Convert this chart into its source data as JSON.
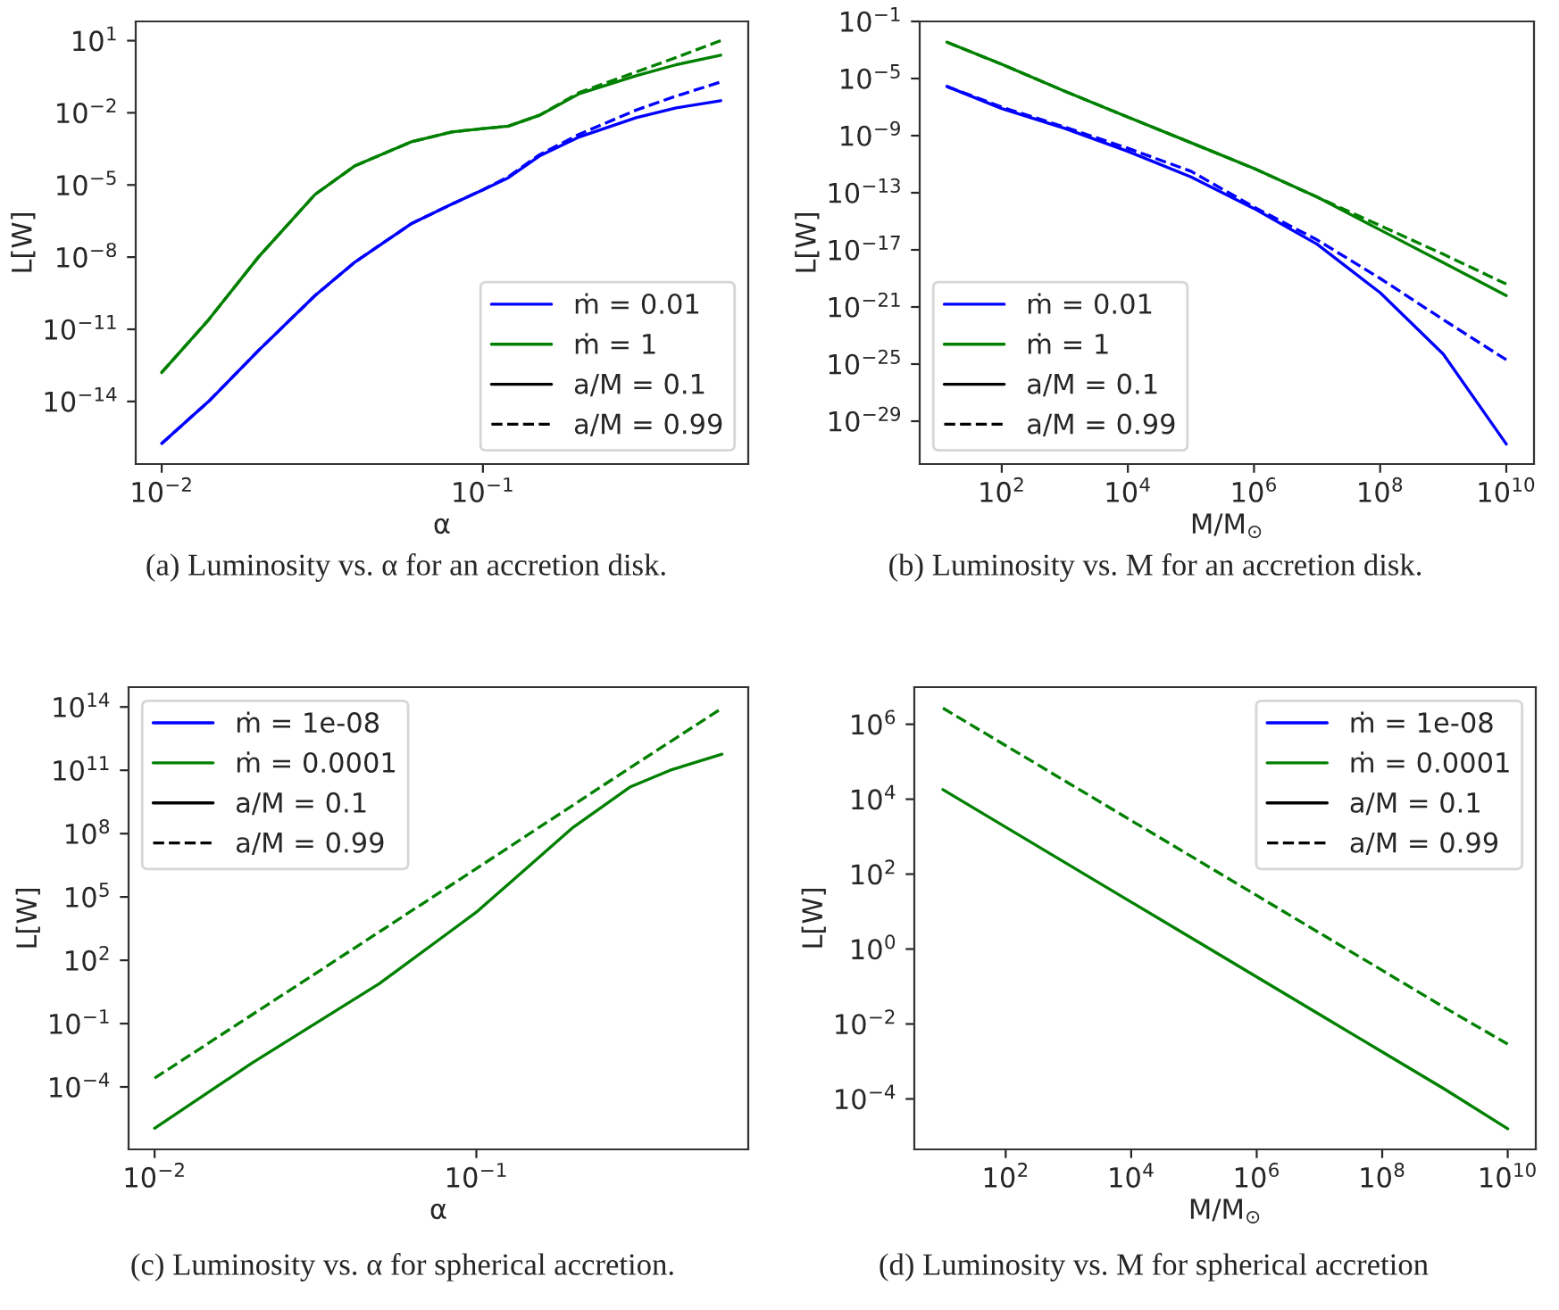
{
  "chart_data": [
    {
      "type": "line",
      "xlabel": "α",
      "ylabel": "L[W]",
      "log": "xy",
      "legend": "bottom right",
      "xlim": [
        0.0083,
        0.67
      ],
      "ylim": [
        2.5e-17,
        63
      ],
      "xticks": [
        {
          "value": 0.01,
          "label": "10$^{−2}$"
        },
        {
          "value": 0.1,
          "label": "10$^{−1}$"
        }
      ],
      "yticks": [
        {
          "value": 1e-14,
          "label": "10$^{−14}$"
        },
        {
          "value": 1e-11,
          "label": "10$^{−11}$"
        },
        {
          "value": 1e-08,
          "label": "10$^{−8}$"
        },
        {
          "value": 1e-05,
          "label": "10$^{−5}$"
        },
        {
          "value": 0.01,
          "label": "10$^{−2}$"
        },
        {
          "value": 10,
          "label": "10$^{1}$"
        }
      ],
      "series": [
        {
          "name": "ṁ = 0.01",
          "color": "#0000ff",
          "line_style": "solid",
          "x": [
            0.01,
            0.014,
            0.02,
            0.03,
            0.04,
            0.06,
            0.08,
            0.1,
            0.12,
            0.15,
            0.2,
            0.3,
            0.4,
            0.55
          ],
          "values": [
            1.8e-16,
            1e-14,
            1.3e-12,
            2.5e-10,
            6.3e-09,
            2.5e-07,
            1.6e-06,
            6.3e-06,
            2e-05,
            0.00016,
            0.001,
            0.0063,
            0.016,
            0.032
          ]
        },
        {
          "color": "#0000ff",
          "line_style": "dashed",
          "x": [
            0.01,
            0.014,
            0.02,
            0.03,
            0.04,
            0.06,
            0.08,
            0.1,
            0.12,
            0.15,
            0.2,
            0.3,
            0.4,
            0.55
          ],
          "values": [
            1.8e-16,
            1e-14,
            1.3e-12,
            2.5e-10,
            6.3e-09,
            2.5e-07,
            1.6e-06,
            6.3e-06,
            2.2e-05,
            0.00018,
            0.0013,
            0.013,
            0.05,
            0.19
          ]
        },
        {
          "name": "ṁ = 1",
          "color": "#008000",
          "line_style": "solid",
          "x": [
            0.01,
            0.014,
            0.02,
            0.03,
            0.04,
            0.06,
            0.08,
            0.1,
            0.12,
            0.15,
            0.2,
            0.3,
            0.4,
            0.55
          ],
          "values": [
            1.6e-13,
            2.5e-11,
            1e-08,
            4e-06,
            6.3e-05,
            0.00063,
            0.0016,
            0.0022,
            0.0028,
            0.0079,
            0.063,
            0.35,
            1,
            2.5
          ]
        },
        {
          "color": "#008000",
          "line_style": "dashed",
          "x": [
            0.01,
            0.014,
            0.02,
            0.03,
            0.04,
            0.06,
            0.08,
            0.1,
            0.12,
            0.15,
            0.2,
            0.3,
            0.4,
            0.55
          ],
          "values": [
            1.6e-13,
            2.5e-11,
            1e-08,
            4e-06,
            6.3e-05,
            0.00063,
            0.0016,
            0.0022,
            0.0028,
            0.0079,
            0.071,
            0.5,
            2.0,
            10
          ]
        },
        {
          "name": "a/M = 0.1",
          "color": "#000000",
          "line_style": "solid"
        },
        {
          "name": "a/M = 0.99",
          "color": "#000000",
          "line_style": "dashed"
        }
      ],
      "annotations": [
        "(a) Luminosity vs. α for an accretion disk."
      ]
    },
    {
      "type": "line",
      "xlabel": "M/M$_{⊙}$",
      "ylabel": "L[W]",
      "log": "xy",
      "legend": "bottom left",
      "xlim": [
        5,
        27500000000.0
      ],
      "ylim": [
        1e-32,
        0.1
      ],
      "xticks": [
        {
          "value": 100,
          "label": "10$^{2}$"
        },
        {
          "value": 10000,
          "label": "10$^{4}$"
        },
        {
          "value": 1000000,
          "label": "10$^{6}$"
        },
        {
          "value": 100000000,
          "label": "10$^{8}$"
        },
        {
          "value": 10000000000,
          "label": "10$^{10}$"
        }
      ],
      "yticks": [
        {
          "value": 1e-29,
          "label": "10$^{−29}$"
        },
        {
          "value": 1e-25,
          "label": "10$^{−25}$"
        },
        {
          "value": 1e-21,
          "label": "10$^{−21}$"
        },
        {
          "value": 1e-17,
          "label": "10$^{−17}$"
        },
        {
          "value": 1e-13,
          "label": "10$^{−13}$"
        },
        {
          "value": 1e-09,
          "label": "10$^{−9}$"
        },
        {
          "value": 1e-05,
          "label": "10$^{−5}$"
        },
        {
          "value": 0.1,
          "label": "10$^{−1}$"
        }
      ],
      "series": [
        {
          "name": "ṁ = 0.01",
          "color": "#0000ff",
          "line_style": "solid",
          "x": [
            13.5,
            100,
            1000,
            10000,
            100000,
            1000000,
            10000000,
            100000000,
            1000000000,
            10000000000
          ],
          "values": [
            2.8e-06,
            7.9e-08,
            3.2e-09,
            7.9e-11,
            1.3e-12,
            7.9e-15,
            2.5e-17,
            1e-20,
            5e-25,
            2.5e-31
          ]
        },
        {
          "color": "#0000ff",
          "line_style": "dashed",
          "x": [
            13.5,
            100,
            1000,
            10000,
            100000,
            1000000,
            10000000,
            100000000,
            1000000000,
            10000000000
          ],
          "values": [
            2.8e-06,
            1e-07,
            4e-09,
            1.3e-10,
            3.2e-12,
            1e-14,
            5e-17,
            1e-19,
            1.3e-22,
            2e-25
          ]
        },
        {
          "name": "ṁ = 1",
          "color": "#008000",
          "line_style": "solid",
          "x": [
            13.5,
            100,
            1000,
            10000,
            100000,
            1000000,
            10000000,
            100000000,
            1000000000,
            10000000000
          ],
          "values": [
            0.0035,
            0.0001,
            1.3e-06,
            2e-08,
            3.2e-10,
            5e-12,
            5e-14,
            2.5e-16,
            1.3e-18,
            6.3e-21
          ]
        },
        {
          "color": "#008000",
          "line_style": "dashed",
          "x": [
            13.5,
            100,
            1000,
            10000,
            100000,
            1000000,
            10000000,
            100000000,
            1000000000,
            10000000000
          ],
          "values": [
            0.0035,
            0.0001,
            1.3e-06,
            2e-08,
            3.2e-10,
            5e-12,
            5e-14,
            5e-16,
            5e-18,
            4e-20
          ]
        },
        {
          "name": "a/M = 0.1",
          "color": "#000000",
          "line_style": "solid"
        },
        {
          "name": "a/M = 0.99",
          "color": "#000000",
          "line_style": "dashed"
        }
      ],
      "annotations": [
        "(b) Luminosity vs. M for an accretion disk."
      ]
    },
    {
      "type": "line",
      "xlabel": "α",
      "ylabel": "L[W]",
      "log": "xy",
      "legend": "top left",
      "xlim": [
        0.0083,
        0.7
      ],
      "ylim": [
        1.1e-07,
        870000000000000.0
      ],
      "xticks": [
        {
          "value": 0.01,
          "label": "10$^{−2}$"
        },
        {
          "value": 0.1,
          "label": "10$^{−1}$"
        }
      ],
      "yticks": [
        {
          "value": 0.0001,
          "label": "10$^{−4}$"
        },
        {
          "value": 0.1,
          "label": "10$^{−1}$"
        },
        {
          "value": 100,
          "label": "10$^{2}$"
        },
        {
          "value": 100000,
          "label": "10$^{5}$"
        },
        {
          "value": 100000000,
          "label": "10$^{8}$"
        },
        {
          "value": 100000000000,
          "label": "10$^{11}$"
        },
        {
          "value": 100000000000000,
          "label": "10$^{14}$"
        }
      ],
      "series": [
        {
          "name": "ṁ = 1e-08",
          "color": "#0000ff",
          "line_style": "solid"
        },
        {
          "name": "ṁ = 0.0001",
          "color": "#008000",
          "line_style": "solid",
          "x": [
            0.01,
            0.02,
            0.05,
            0.1,
            0.13,
            0.2,
            0.3,
            0.4,
            0.58
          ],
          "values": [
            1.1e-06,
            0.0013,
            7.9,
            19000.0,
            630000.0,
            200000000.0,
            16000000000.0,
            100000000000.0,
            580000000000.0
          ]
        },
        {
          "color": "#008000",
          "line_style": "dashed",
          "x": [
            0.01,
            0.03,
            0.1,
            0.3,
            0.58
          ],
          "values": [
            0.00026,
            14,
            2200000.0,
            130000000000.0,
            87000000000000.0
          ]
        },
        {
          "name": "a/M = 0.1",
          "color": "#000000",
          "line_style": "solid"
        },
        {
          "name": "a/M = 0.99",
          "color": "#000000",
          "line_style": "dashed"
        }
      ],
      "annotations": [
        "(c) Luminosity vs. α for spherical accretion."
      ]
    },
    {
      "type": "line",
      "xlabel": "M/M$_{⊙}$",
      "ylabel": "L[W]",
      "log": "xy",
      "legend": "top right",
      "xlim": [
        3.5,
        28000000000.0
      ],
      "ylim": [
        4.5e-06,
        9800000.0
      ],
      "xticks": [
        {
          "value": 100,
          "label": "10$^{2}$"
        },
        {
          "value": 10000,
          "label": "10$^{4}$"
        },
        {
          "value": 1000000,
          "label": "10$^{6}$"
        },
        {
          "value": 100000000,
          "label": "10$^{8}$"
        },
        {
          "value": 10000000000,
          "label": "10$^{10}$"
        }
      ],
      "yticks": [
        {
          "value": 0.0001,
          "label": "10$^{−4}$"
        },
        {
          "value": 0.01,
          "label": "10$^{−2}$"
        },
        {
          "value": 1,
          "label": "10$^{0}$"
        },
        {
          "value": 100,
          "label": "10$^{2}$"
        },
        {
          "value": 10000,
          "label": "10$^{4}$"
        },
        {
          "value": 1000000,
          "label": "10$^{6}$"
        }
      ],
      "series": [
        {
          "name": "ṁ = 1e-08",
          "color": "#0000ff",
          "line_style": "solid"
        },
        {
          "name": "ṁ = 0.0001",
          "color": "#008000",
          "line_style": "solid",
          "x": [
            10,
            100,
            1000,
            10000,
            100000,
            1000000,
            10000000,
            100000000,
            1000000000,
            10000000000
          ],
          "values": [
            18000.0,
            1800.0,
            180,
            18,
            1.8,
            0.18,
            0.018,
            0.0018,
            0.00018,
            1.6e-05
          ]
        },
        {
          "color": "#008000",
          "line_style": "dashed",
          "x": [
            10,
            100,
            1000,
            10000,
            100000,
            1000000,
            10000000,
            100000000,
            1000000000,
            10000000000
          ],
          "values": [
            2700000.0,
            270000.0,
            27000.0,
            2700.0,
            270,
            27,
            2.7,
            0.27,
            0.027,
            0.0029
          ]
        },
        {
          "name": "a/M = 0.1",
          "color": "#000000",
          "line_style": "solid"
        },
        {
          "name": "a/M = 0.99",
          "color": "#000000",
          "line_style": "dashed"
        }
      ],
      "annotations": [
        "(d) Luminosity vs. M for spherical accretion"
      ]
    }
  ]
}
